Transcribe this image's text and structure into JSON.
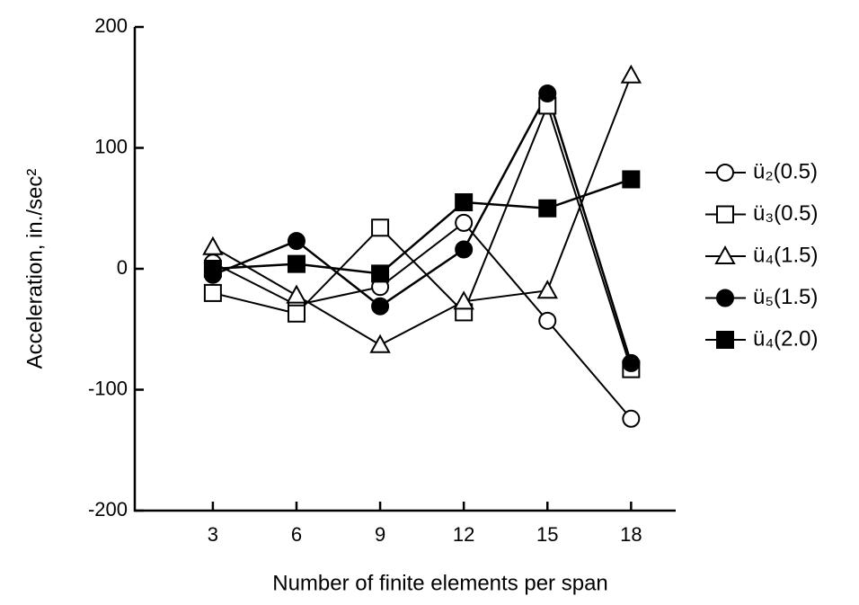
{
  "chart_data": {
    "type": "line",
    "xlabel": "Number of finite elements per span",
    "ylabel": "Acceleration, in./sec²",
    "x": [
      3,
      6,
      9,
      12,
      15,
      18
    ],
    "xlim": [
      0.2,
      19.6
    ],
    "xticks": [
      3,
      6,
      9,
      12,
      15,
      18
    ],
    "ylim": [
      -200,
      200
    ],
    "yticks": [
      -200,
      -100,
      0,
      100,
      200
    ],
    "legend": "right",
    "series": [
      {
        "name": "ü₂(0.5)",
        "color": "#000000",
        "marker": "circle",
        "filled": false,
        "values": [
          5,
          -30,
          -15,
          38,
          -43,
          -124
        ]
      },
      {
        "name": "ü₃(0.5)",
        "color": "#000000",
        "marker": "square",
        "filled": false,
        "values": [
          -20,
          -37,
          34,
          -36,
          135,
          -83
        ]
      },
      {
        "name": "ü₄(1.5)",
        "color": "#000000",
        "marker": "triangle",
        "filled": false,
        "values": [
          18,
          -22,
          -63,
          -27,
          -18,
          160
        ]
      },
      {
        "name": "ü₅(1.5)",
        "color": "#000000",
        "marker": "circle",
        "filled": true,
        "values": [
          -5,
          23,
          -31,
          16,
          145,
          -78
        ]
      },
      {
        "name": "ü₄(2.0)",
        "color": "#000000",
        "marker": "square",
        "filled": true,
        "values": [
          0,
          4,
          -4,
          55,
          50,
          74
        ]
      }
    ]
  }
}
